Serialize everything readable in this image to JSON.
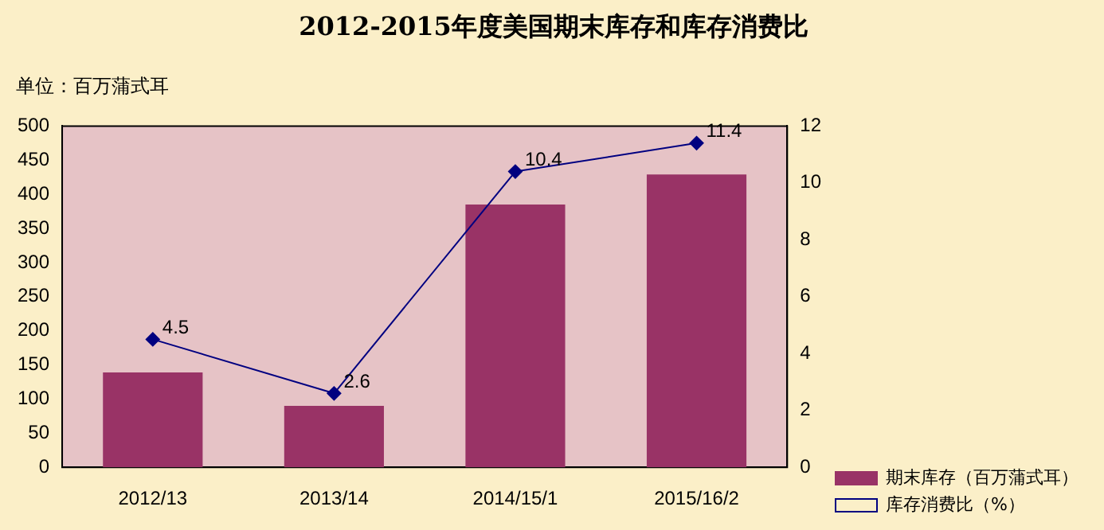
{
  "chart_data": {
    "type": "bar",
    "title": "2012-2015年度美国期末库存和库存消费比",
    "annotations": [
      "单位：百万蒲式耳"
    ],
    "categories": [
      "2012/13",
      "2013/14",
      "2014/15/1",
      "2015/16/2"
    ],
    "series": [
      {
        "name": "期末库存（百万蒲式耳）",
        "color": "#993366",
        "values": [
          139,
          90,
          385,
          429
        ]
      },
      {
        "name": "库存消费比（%）",
        "type": "line",
        "axis": "y2",
        "color": "#000080",
        "values": [
          4.5,
          2.6,
          10.4,
          11.4
        ],
        "value_labels": [
          "4.5",
          "2.6",
          "10.4",
          "11.4"
        ],
        "marker": "diamond"
      }
    ],
    "ylim": [
      0,
      500
    ],
    "yticks": [
      0,
      50,
      100,
      150,
      200,
      250,
      300,
      350,
      400,
      450,
      500
    ],
    "y2lim": [
      0,
      12
    ],
    "y2ticks": [
      0,
      2,
      4,
      6,
      8,
      10,
      12
    ],
    "grid": false,
    "legend": "right"
  }
}
